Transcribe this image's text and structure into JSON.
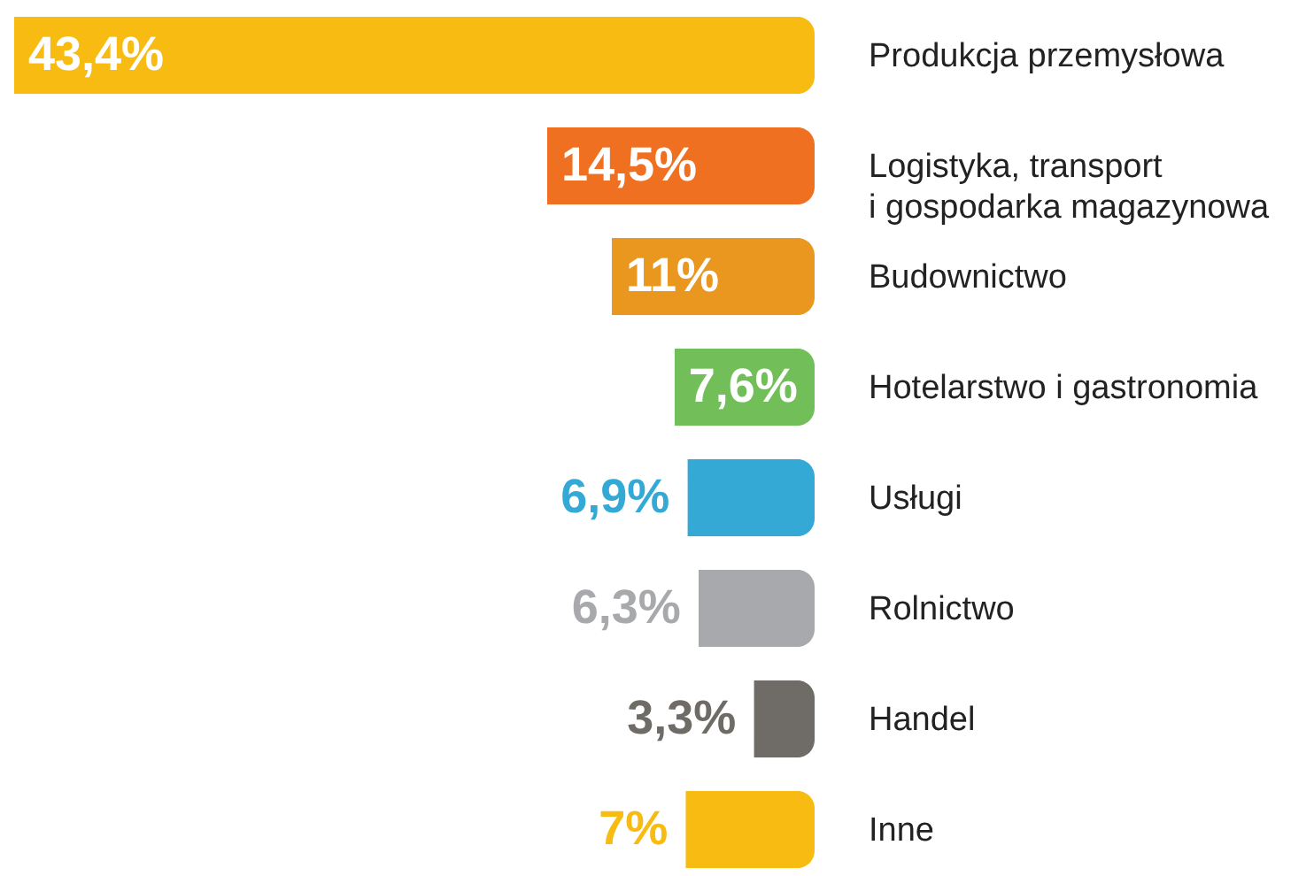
{
  "chart_data": {
    "type": "bar",
    "orientation": "horizontal",
    "categories": [
      "Produkcja przemysłowa",
      "Logistyka, transport\ni gospodarka magazynowa",
      "Budownictwo",
      "Hotelarstwo i gastronomia",
      "Usługi",
      "Rolnictwo",
      "Handel",
      "Inne"
    ],
    "values": [
      43.4,
      14.5,
      11,
      7.6,
      6.9,
      6.3,
      3.3,
      7
    ],
    "colors": [
      "#f7bb12",
      "#f07022",
      "#e9971e",
      "#72bf5a",
      "#35a9d6",
      "#a8a9ad",
      "#6f6b67",
      "#f7bb12"
    ],
    "value_labels": [
      "43,4%",
      "14,5%",
      "11%",
      "7,6%",
      "6,9%",
      "6,3%",
      "3,3%",
      "7%"
    ]
  }
}
